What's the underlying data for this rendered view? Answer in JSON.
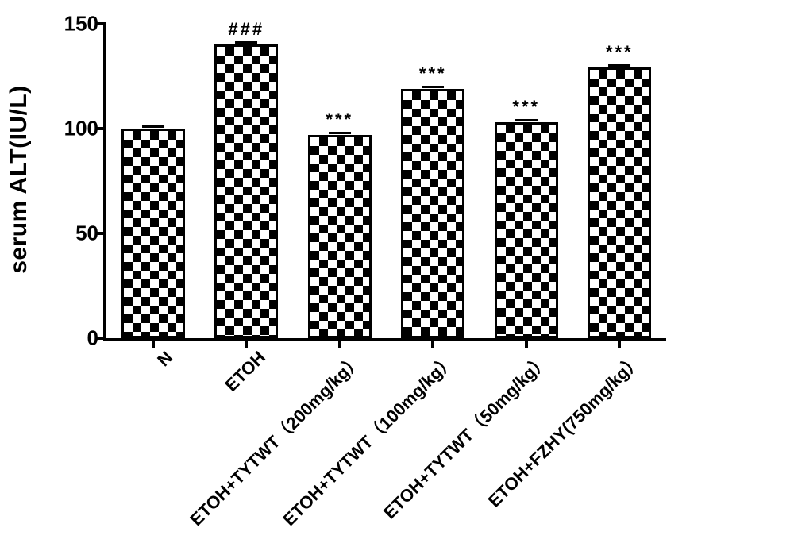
{
  "chart": {
    "type": "bar",
    "y_label": "serum ALT(IU/L)",
    "y_label_fontsize": 30,
    "ylim": [
      0,
      150
    ],
    "ytick_step": 50,
    "yticks": [
      0,
      50,
      100,
      150
    ],
    "ytick_fontsize": 26,
    "axis_color": "#000000",
    "background_color": "#ffffff",
    "bar_fill_pattern": "checker",
    "bar_border_color": "#000000",
    "bar_width_ratio": 0.68,
    "x_label_fontsize": 22,
    "x_label_rotation_deg": -45,
    "sig_fontsize": 22,
    "categories": [
      {
        "label": "N",
        "value": 100,
        "error": 1,
        "sig": ""
      },
      {
        "label": "ETOH",
        "value": 140,
        "error": 1,
        "sig": "###"
      },
      {
        "label": "ETOH+TYTWT（200mg/kg）",
        "value": 97,
        "error": 1,
        "sig": "***"
      },
      {
        "label": "ETOH+TYTWT（100mg/kg）",
        "value": 119,
        "error": 1,
        "sig": "***"
      },
      {
        "label": "ETOH+TYTWT（50mg/kg）",
        "value": 103,
        "error": 1,
        "sig": "***"
      },
      {
        "label": "ETOH+FZHY(750mg/kg）",
        "value": 129,
        "error": 1,
        "sig": "***"
      }
    ]
  }
}
